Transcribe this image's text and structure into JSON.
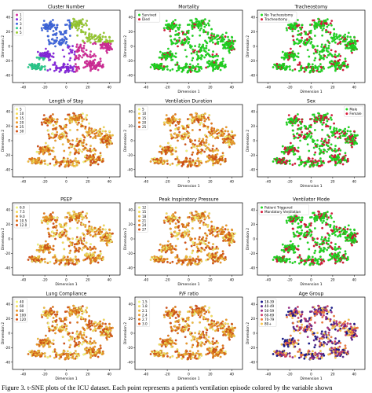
{
  "caption": "Figure 3. t-SNE plots of the ICU dataset. Each point represents a patient's ventilation episode colored by the variable shown",
  "colors": {
    "green": "#22d822",
    "red": "#d81a3a",
    "cluster": [
      "#d62f9c",
      "#8a2be2",
      "#4169e1",
      "#2ecf91",
      "#9acd32"
    ],
    "sequential": [
      "#f2f57a",
      "#f5dc5a",
      "#f2bb3e",
      "#ee9a2b",
      "#e4781c",
      "#d5541a"
    ],
    "age": [
      "#1a1a8c",
      "#5a2a90",
      "#9a2d88",
      "#d1426b",
      "#f07a3c",
      "#f7c34a"
    ]
  },
  "chart_data": [
    {
      "type": "scatter",
      "title": "Cluster Number",
      "xlabel": "",
      "ylabel": "Dimension 2",
      "xlim": [
        -50,
        50
      ],
      "ylim": [
        -50,
        50
      ],
      "xticks": [
        "-40",
        "-20",
        "0",
        "20",
        "40"
      ],
      "yticks": [
        "40",
        "20",
        "0",
        "-20",
        "-40"
      ],
      "legend": {
        "position": "top-left",
        "items": [
          "1",
          "2",
          "3",
          "4",
          "5"
        ]
      },
      "coloring": "cluster"
    },
    {
      "type": "scatter",
      "title": "Mortality",
      "xlabel": "Dimension 1",
      "ylabel": "Dimension 2",
      "xlim": [
        -50,
        50
      ],
      "ylim": [
        -50,
        50
      ],
      "xticks": [
        "-40",
        "-20",
        "0",
        "20",
        "40"
      ],
      "yticks": [
        "40",
        "20",
        "0",
        "-20",
        "-40"
      ],
      "legend": {
        "position": "top-left",
        "items": [
          "Survived",
          "Died"
        ]
      },
      "coloring": "binary",
      "minority_share": 0.12
    },
    {
      "type": "scatter",
      "title": "Tracheostomy",
      "xlabel": "Dimension 1",
      "ylabel": "Dimension 2",
      "xlim": [
        -50,
        50
      ],
      "ylim": [
        -50,
        50
      ],
      "xticks": [
        "-40",
        "-20",
        "0",
        "20",
        "40"
      ],
      "yticks": [
        "40",
        "20",
        "0",
        "-20",
        "-40"
      ],
      "legend": {
        "position": "top-left",
        "items": [
          "No Tracheostomy",
          "Tracheostomy"
        ]
      },
      "coloring": "binary",
      "minority_share": 0.25
    },
    {
      "type": "scatter",
      "title": "Length of Stay",
      "xlabel": "",
      "ylabel": "Dimension 2",
      "xlim": [
        -50,
        50
      ],
      "ylim": [
        -50,
        50
      ],
      "xticks": [
        "-40",
        "-20",
        "0",
        "20",
        "40"
      ],
      "yticks": [
        "40",
        "20",
        "0",
        "-20",
        "-40"
      ],
      "legend": {
        "position": "top-left",
        "items": [
          "5",
          "10",
          "15",
          "20",
          "25",
          "30"
        ]
      },
      "coloring": "sequential"
    },
    {
      "type": "scatter",
      "title": "Ventilation Duration",
      "xlabel": "Dimension 1",
      "ylabel": "Dimension 2",
      "xlim": [
        -50,
        50
      ],
      "ylim": [
        -50,
        50
      ],
      "xticks": [
        "-40",
        "-20",
        "0",
        "20",
        "40"
      ],
      "yticks": [
        "40",
        "20",
        "0",
        "-20",
        "-40"
      ],
      "legend": {
        "position": "top-left",
        "items": [
          "5",
          "10",
          "15",
          "20",
          "25"
        ]
      },
      "coloring": "sequential"
    },
    {
      "type": "scatter",
      "title": "Sex",
      "xlabel": "Dimension 1",
      "ylabel": "Dimension 2",
      "xlim": [
        -50,
        50
      ],
      "ylim": [
        -50,
        50
      ],
      "xticks": [
        "-40",
        "-20",
        "0",
        "20",
        "40"
      ],
      "yticks": [
        "40",
        "20",
        "0",
        "-20",
        "-40"
      ],
      "legend": {
        "position": "top-right",
        "items": [
          "Male",
          "Female"
        ]
      },
      "coloring": "binary",
      "minority_share": 0.4
    },
    {
      "type": "scatter",
      "title": "PEEP",
      "xlabel": "Dimension 1",
      "ylabel": "Dimension 2",
      "xlim": [
        -50,
        50
      ],
      "ylim": [
        -50,
        50
      ],
      "xticks": [
        "-40",
        "-20",
        "0",
        "20",
        "40"
      ],
      "yticks": [
        "40",
        "20",
        "0",
        "-20",
        "-40"
      ],
      "legend": {
        "position": "top-left",
        "items": [
          "6.0",
          "7.5",
          "9.0",
          "10.5",
          "12.0"
        ]
      },
      "coloring": "sequential"
    },
    {
      "type": "scatter",
      "title": "Peak Inspiratory Pressure",
      "xlabel": "Dimension 1",
      "ylabel": "Dimension 2",
      "xlim": [
        -50,
        50
      ],
      "ylim": [
        -50,
        50
      ],
      "xticks": [
        "-40",
        "-20",
        "0",
        "20",
        "40"
      ],
      "yticks": [
        "40",
        "20",
        "0",
        "-20",
        "-40"
      ],
      "legend": {
        "position": "top-left",
        "items": [
          "12",
          "15",
          "18",
          "21",
          "24",
          "27"
        ]
      },
      "coloring": "sequential"
    },
    {
      "type": "scatter",
      "title": "Ventilator Mode",
      "xlabel": "Dimension 1",
      "ylabel": "Dimension 2",
      "xlim": [
        -50,
        50
      ],
      "ylim": [
        -50,
        50
      ],
      "xticks": [
        "-40",
        "-20",
        "0",
        "20",
        "40"
      ],
      "yticks": [
        "40",
        "20",
        "0",
        "-20",
        "-40"
      ],
      "legend": {
        "position": "top-left",
        "items": [
          "Patient Triggered",
          "Mandatory Ventilation"
        ]
      },
      "coloring": "binary",
      "minority_share": 0.3
    },
    {
      "type": "scatter",
      "title": "Lung Compliance",
      "xlabel": "Dimension 1",
      "ylabel": "Dimension 2",
      "xlim": [
        -50,
        50
      ],
      "ylim": [
        -50,
        50
      ],
      "xticks": [
        "-40",
        "-20",
        "0",
        "20",
        "40"
      ],
      "yticks": [
        "40",
        "20",
        "0",
        "-20",
        "-40"
      ],
      "legend": {
        "position": "top-left",
        "items": [
          "40",
          "60",
          "80",
          "100",
          "120"
        ]
      },
      "coloring": "sequential"
    },
    {
      "type": "scatter",
      "title": "P/F ratio",
      "xlabel": "Dimension 1",
      "ylabel": "Dimension 2",
      "xlim": [
        -50,
        50
      ],
      "ylim": [
        -50,
        50
      ],
      "xticks": [
        "-40",
        "-20",
        "0",
        "20",
        "40"
      ],
      "yticks": [
        "40",
        "20",
        "0",
        "-20",
        "-40"
      ],
      "legend": {
        "position": "top-left",
        "items": [
          "1.5",
          "1.8",
          "2.1",
          "2.4",
          "2.7",
          "3.0"
        ]
      },
      "coloring": "sequential"
    },
    {
      "type": "scatter",
      "title": "Age Group",
      "xlabel": "Dimension 1",
      "ylabel": "Dimension 2",
      "xlim": [
        -50,
        50
      ],
      "ylim": [
        -50,
        50
      ],
      "xticks": [
        "-40",
        "-20",
        "0",
        "20",
        "40"
      ],
      "yticks": [
        "40",
        "20",
        "0",
        "-20",
        "-40"
      ],
      "legend": {
        "position": "top-left",
        "items": [
          "18-39",
          "40-49",
          "50-59",
          "60-69",
          "70-79",
          "80+"
        ]
      },
      "coloring": "age"
    }
  ]
}
